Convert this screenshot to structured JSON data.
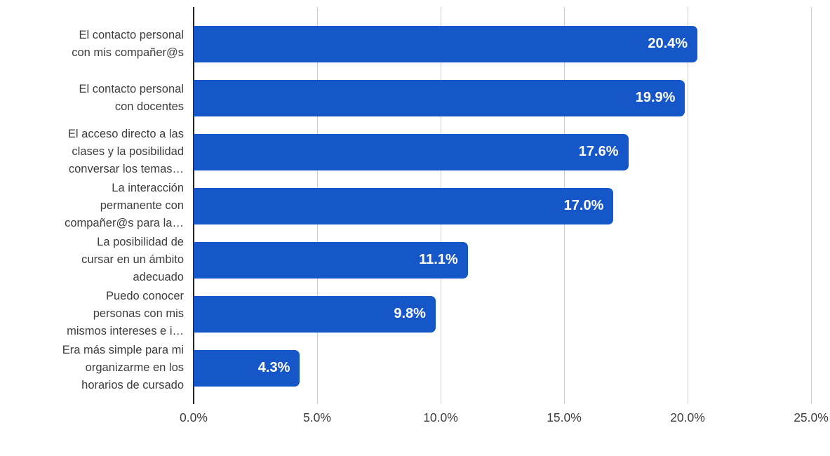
{
  "chart_data": {
    "type": "bar",
    "orientation": "horizontal",
    "title": "",
    "xlabel": "",
    "ylabel": "",
    "xlim": [
      0,
      25
    ],
    "grid": true,
    "legend": false,
    "categories": [
      "El contacto personal\ncon mis compañer@s",
      "El contacto personal\ncon docentes",
      "El acceso directo a las\nclases y la posibilidad\nconversar los temas…",
      "La interacción\npermanente con\ncompañer@s para la…",
      "La posibilidad de\ncursar en un ámbito\nadecuado",
      "Puedo conocer\npersonas con mis\nmismos intereses e i…",
      "Era más simple para mi\norganizarme en los\nhorarios de cursado"
    ],
    "values": [
      20.4,
      19.9,
      17.6,
      17.0,
      11.1,
      9.8,
      4.3
    ],
    "value_labels": [
      "20.4%",
      "19.9%",
      "17.6%",
      "17.0%",
      "11.1%",
      "9.8%",
      "4.3%"
    ],
    "x_ticks": [
      "0.0%",
      "5.0%",
      "10.0%",
      "15.0%",
      "20.0%",
      "25.0%"
    ]
  },
  "colors": {
    "bar": "#1556c8",
    "grid_line": "#cccccc",
    "axis_line": "#222222",
    "label_text": "#3d3d3d",
    "value_text": "#ffffff",
    "background": "#ffffff"
  }
}
